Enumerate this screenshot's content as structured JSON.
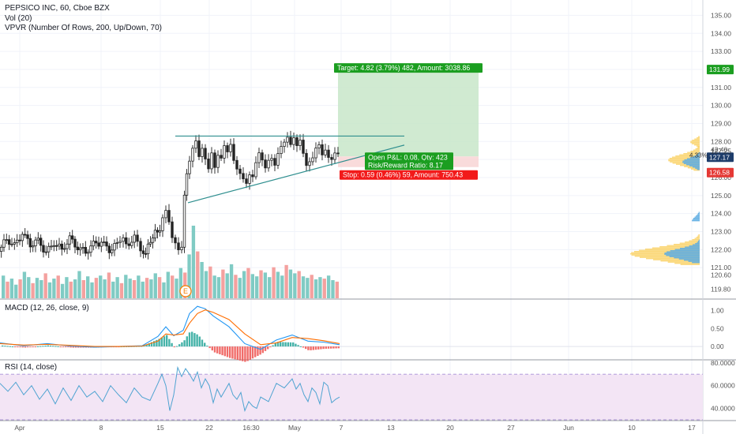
{
  "colors": {
    "up": "#26a69a",
    "down": "#ef5350",
    "vol_up": "#80cbc4",
    "vol_down": "#f4a19f",
    "target_fill": "#c8e6c9",
    "stop_fill": "#f8d7d7",
    "target_label": "#1b9e20",
    "stop_label": "#f21a1a",
    "macd_line": "#2196f3",
    "signal_line": "#ff6d00",
    "rsi_line": "#4fa3d1",
    "rsi_band": "#f3e5f5",
    "trendline": "#2f8f8f",
    "vpvr_up": "#5dade2",
    "vpvr_down": "#fbd46d",
    "price_tag_green": "#1b9e20",
    "price_tag_blue": "#1e3d6b",
    "price_tag_red": "#e53935"
  },
  "legend": {
    "main": "PEPSICO INC, 60, Cboe BZX",
    "vol": "Vol (20)",
    "vpvr": "VPVR (Number Of Rows, 200, Up/Down, 70)",
    "macd": "MACD (12, 26, close, 9)",
    "rsi": "RSI (14, close)"
  },
  "position": {
    "target_label": "Target: 4.82 (3.79%) 482, Amount: 3038.86",
    "pnl_label": "Open P&L: 0.08, Qty: 423",
    "rr_label": "Risk/Reward Ratio: 8.17",
    "stop_label": "Stop: 0.59 (0.46%) 59, Amount: 750.43"
  },
  "earnings_marker": "E",
  "price_tags": {
    "target": "131.99",
    "current": "127.17",
    "countdown": "42:40",
    "stop": "126.58",
    "vpvr_pct": "4.33%",
    "vpvr_price": "127.25"
  },
  "chart_data": [
    {
      "type": "candlestick",
      "title": "PEPSICO INC, 60, Cboe BZX",
      "x_tick_labels": [
        "Apr",
        "8",
        "15",
        "22",
        "16:30",
        "May",
        "7",
        "13",
        "20",
        "27",
        "Jun",
        "10",
        "17"
      ],
      "y_tick_labels": [
        "135.00",
        "134.00",
        "133.00",
        "132.00",
        "131.00",
        "130.00",
        "129.00",
        "128.00",
        "127.00",
        "126.00",
        "125.00",
        "124.00",
        "123.00",
        "122.00",
        "121.00",
        "120.60",
        "119.80"
      ],
      "ylim": [
        119.3,
        135.5
      ],
      "close_path": [
        [
          0,
          121.9
        ],
        [
          10,
          122.6
        ],
        [
          20,
          122.2
        ],
        [
          30,
          122.9
        ],
        [
          40,
          122.3
        ],
        [
          50,
          122.5
        ],
        [
          60,
          121.8
        ],
        [
          70,
          122.4
        ],
        [
          80,
          122.0
        ],
        [
          90,
          122.6
        ],
        [
          100,
          122.1
        ],
        [
          110,
          121.9
        ],
        [
          120,
          122.3
        ],
        [
          130,
          122.4
        ],
        [
          140,
          122.0
        ],
        [
          150,
          122.3
        ],
        [
          158,
          122.8
        ],
        [
          165,
          122.2
        ],
        [
          172,
          122.9
        ],
        [
          180,
          122.1
        ],
        [
          186,
          121.8
        ],
        [
          192,
          122.5
        ],
        [
          198,
          122.9
        ],
        [
          204,
          123.2
        ],
        [
          208,
          123.6
        ],
        [
          212,
          124.0
        ],
        [
          216,
          123.4
        ],
        [
          220,
          122.6
        ],
        [
          224,
          122.4
        ],
        [
          228,
          122.1
        ],
        [
          232,
          122.3
        ],
        [
          235,
          125.2
        ],
        [
          238,
          126.3
        ],
        [
          242,
          126.8
        ],
        [
          246,
          127.6
        ],
        [
          250,
          128.1
        ],
        [
          254,
          127.3
        ],
        [
          258,
          127.8
        ],
        [
          262,
          127.2
        ],
        [
          266,
          126.6
        ],
        [
          270,
          127.4
        ],
        [
          274,
          126.5
        ],
        [
          278,
          127.1
        ],
        [
          282,
          126.9
        ],
        [
          286,
          127.6
        ],
        [
          290,
          127.3
        ],
        [
          294,
          127.8
        ],
        [
          298,
          127.0
        ],
        [
          302,
          126.6
        ],
        [
          306,
          126.4
        ],
        [
          310,
          126.1
        ],
        [
          314,
          125.8
        ],
        [
          318,
          126.2
        ],
        [
          322,
          126.0
        ],
        [
          326,
          126.7
        ],
        [
          330,
          127.2
        ],
        [
          334,
          126.8
        ],
        [
          338,
          126.4
        ],
        [
          342,
          126.9
        ],
        [
          346,
          127.1
        ],
        [
          350,
          126.8
        ],
        [
          354,
          127.5
        ],
        [
          358,
          127.9
        ],
        [
          362,
          128.1
        ],
        [
          366,
          128.3
        ],
        [
          370,
          127.8
        ],
        [
          374,
          128.1
        ],
        [
          378,
          127.6
        ],
        [
          382,
          127.9
        ],
        [
          386,
          127.2
        ],
        [
          390,
          126.6
        ],
        [
          394,
          126.9
        ],
        [
          398,
          127.2
        ],
        [
          402,
          127.8
        ],
        [
          406,
          128.0
        ],
        [
          410,
          127.4
        ],
        [
          414,
          127.6
        ],
        [
          418,
          127.1
        ],
        [
          422,
          126.9
        ],
        [
          426,
          127.2
        ],
        [
          430,
          127.17
        ]
      ],
      "resistance_line": {
        "x": [
          222,
          512
        ],
        "y": [
          128.3,
          128.3
        ]
      },
      "support_line": {
        "x": [
          238,
          512
        ],
        "y": [
          124.6,
          127.8
        ]
      },
      "position": {
        "entry": 127.17,
        "target": 131.99,
        "stop": 126.58,
        "x_start": 428,
        "x_end": 606
      }
    },
    {
      "type": "bar",
      "title": "Vol (20)",
      "values_note": "volume bars under price, relative heights",
      "values": [
        30,
        22,
        26,
        18,
        25,
        35,
        28,
        20,
        27,
        24,
        33,
        21,
        26,
        30,
        19,
        28,
        22,
        25,
        36,
        24,
        29,
        21,
        27,
        30,
        25,
        34,
        22,
        28,
        20,
        31,
        26,
        24,
        30,
        22,
        27,
        25,
        33,
        28,
        21,
        35,
        30,
        26,
        40,
        34,
        58,
        96,
        62,
        48,
        36,
        42,
        30,
        28,
        38,
        33,
        45,
        31,
        27,
        36,
        40,
        32,
        29,
        37,
        34,
        28,
        41,
        35,
        30,
        44,
        38,
        33,
        36,
        29,
        27,
        31,
        25,
        28,
        26,
        30,
        24,
        22
      ]
    },
    {
      "type": "line",
      "title": "MACD (12, 26, close, 9)",
      "y_tick_labels": [
        "1.00",
        "0.50",
        "0.00"
      ],
      "ylim": [
        -0.35,
        1.3
      ],
      "series": [
        {
          "name": "MACD",
          "x": [
            0,
            30,
            60,
            90,
            120,
            150,
            180,
            200,
            210,
            220,
            232,
            240,
            250,
            260,
            270,
            290,
            310,
            330,
            350,
            370,
            390,
            410,
            430
          ],
          "y": [
            0.1,
            0.02,
            0.08,
            0.01,
            -0.02,
            0.0,
            0.02,
            0.28,
            0.55,
            0.3,
            0.45,
            0.92,
            1.12,
            1.05,
            0.85,
            0.55,
            0.08,
            -0.08,
            0.18,
            0.32,
            0.15,
            0.12,
            0.05
          ]
        },
        {
          "name": "Signal",
          "x": [
            0,
            30,
            60,
            90,
            120,
            150,
            180,
            200,
            210,
            220,
            232,
            240,
            250,
            260,
            270,
            290,
            310,
            330,
            350,
            370,
            390,
            410,
            430
          ],
          "y": [
            0.08,
            0.04,
            0.06,
            0.03,
            0.0,
            0.0,
            0.01,
            0.15,
            0.35,
            0.32,
            0.35,
            0.65,
            0.92,
            1.02,
            0.95,
            0.75,
            0.35,
            0.05,
            0.1,
            0.25,
            0.22,
            0.16,
            0.08
          ]
        }
      ]
    },
    {
      "type": "line",
      "title": "RSI (14, close)",
      "y_tick_labels": [
        "80.0000",
        "60.0000",
        "40.0000"
      ],
      "ylim": [
        30,
        82
      ],
      "band": [
        30,
        70
      ],
      "series": [
        {
          "name": "RSI",
          "x": [
            0,
            10,
            20,
            30,
            40,
            50,
            60,
            70,
            80,
            90,
            100,
            110,
            120,
            130,
            140,
            150,
            160,
            170,
            180,
            190,
            200,
            205,
            210,
            215,
            220,
            225,
            230,
            235,
            240,
            245,
            250,
            255,
            260,
            265,
            270,
            275,
            280,
            285,
            290,
            295,
            300,
            305,
            310,
            315,
            320,
            325,
            330,
            340,
            350,
            360,
            370,
            375,
            380,
            385,
            390,
            395,
            400,
            405,
            410,
            415,
            420,
            425,
            430
          ],
          "y": [
            62,
            55,
            63,
            52,
            60,
            48,
            57,
            44,
            58,
            47,
            60,
            50,
            55,
            46,
            60,
            52,
            45,
            58,
            50,
            47,
            62,
            70,
            60,
            38,
            52,
            76,
            68,
            75,
            70,
            64,
            72,
            58,
            66,
            60,
            45,
            57,
            50,
            56,
            62,
            52,
            48,
            54,
            38,
            46,
            42,
            40,
            50,
            46,
            62,
            58,
            66,
            57,
            62,
            52,
            46,
            58,
            54,
            44,
            63,
            60,
            45,
            48,
            50
          ]
        }
      ]
    }
  ]
}
